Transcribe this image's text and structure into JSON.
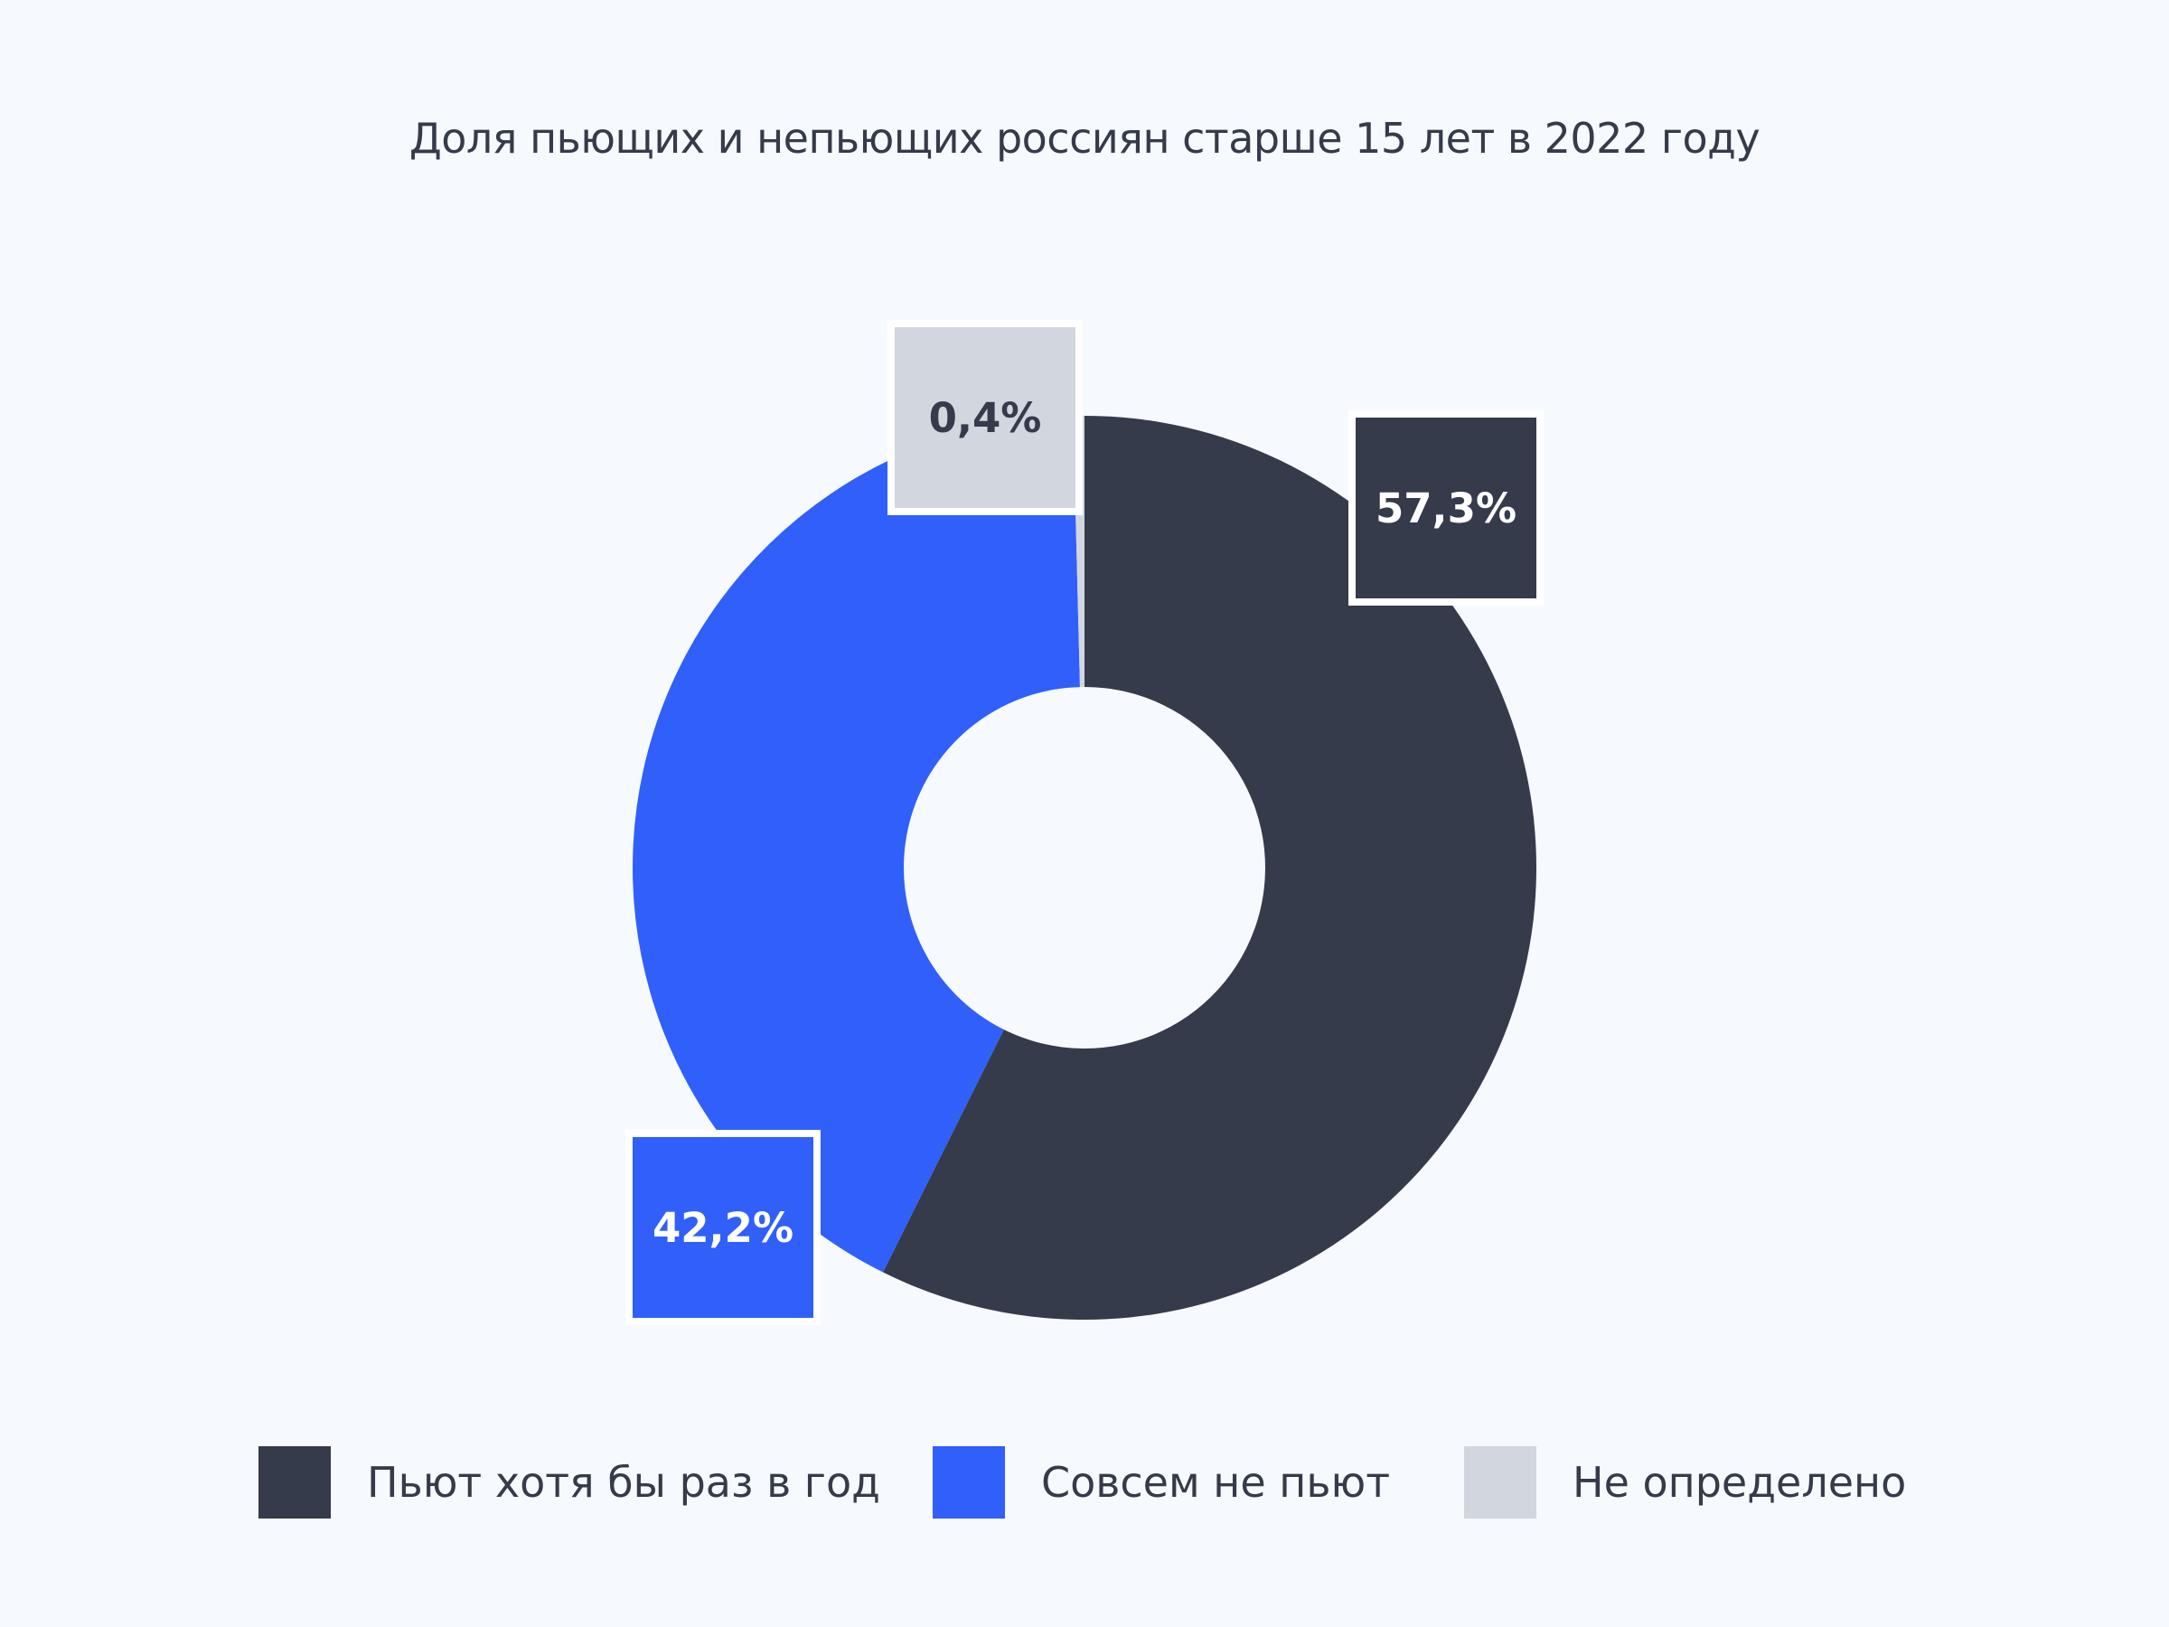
{
  "chart_data": {
    "type": "pie",
    "title": "Доля пьющих и непьющих россиян старше 15 лет в 2022 году",
    "categories": [
      "Пьют хотя бы раз в год",
      "Совсем не пьют",
      "Не определено"
    ],
    "values": [
      57.3,
      42.2,
      0.4
    ],
    "labels": [
      "57,3%",
      "42,2%",
      "0,4%"
    ],
    "colors": [
      "#353b4b",
      "#315ffa",
      "#d2d6df"
    ],
    "label_text_colors": [
      "#ffffff",
      "#ffffff",
      "#353b4b"
    ],
    "legend_position": "bottom",
    "donut": true
  }
}
